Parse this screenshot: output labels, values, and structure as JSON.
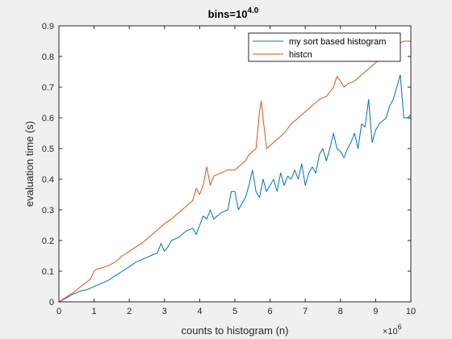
{
  "chart_data": {
    "type": "line",
    "title": "bins=10",
    "title_exponent": "4.0",
    "xlabel": "counts to histogram (n)",
    "ylabel": "evaluation time (s)",
    "x_exponent_label": "×10",
    "x_exponent": "6",
    "xlim": [
      0,
      10000000
    ],
    "ylim": [
      0,
      0.9
    ],
    "x_ticks": [
      0,
      1000000,
      2000000,
      3000000,
      4000000,
      5000000,
      6000000,
      7000000,
      8000000,
      9000000,
      10000000
    ],
    "x_tick_labels": [
      "0",
      "1",
      "2",
      "3",
      "4",
      "5",
      "6",
      "7",
      "8",
      "9",
      "10"
    ],
    "y_ticks": [
      0,
      0.1,
      0.2,
      0.3,
      0.4,
      0.5,
      0.6,
      0.7,
      0.8,
      0.9
    ],
    "y_tick_labels": [
      "0",
      "0.1",
      "0.2",
      "0.3",
      "0.4",
      "0.5",
      "0.6",
      "0.7",
      "0.8",
      "0.9"
    ],
    "grid": false,
    "legend_position": "top-right",
    "series": [
      {
        "name": "my sort based histogram",
        "color": "#0072bd",
        "x": [
          0,
          200000,
          400000,
          600000,
          800000,
          1000000,
          1200000,
          1400000,
          1600000,
          1800000,
          2000000,
          2200000,
          2400000,
          2600000,
          2800000,
          2900000,
          3000000,
          3100000,
          3200000,
          3400000,
          3600000,
          3800000,
          3900000,
          4000000,
          4100000,
          4200000,
          4300000,
          4400000,
          4600000,
          4800000,
          4900000,
          5000000,
          5100000,
          5200000,
          5300000,
          5400000,
          5500000,
          5600000,
          5700000,
          5800000,
          5900000,
          6000000,
          6100000,
          6200000,
          6300000,
          6400000,
          6500000,
          6600000,
          6700000,
          6800000,
          6900000,
          7000000,
          7100000,
          7200000,
          7300000,
          7400000,
          7500000,
          7600000,
          7700000,
          7800000,
          7900000,
          8000000,
          8100000,
          8200000,
          8300000,
          8400000,
          8500000,
          8600000,
          8700000,
          8800000,
          8900000,
          9000000,
          9100000,
          9200000,
          9300000,
          9400000,
          9500000,
          9600000,
          9700000,
          9800000,
          9900000,
          10000000
        ],
        "y": [
          0,
          0.012,
          0.025,
          0.035,
          0.04,
          0.05,
          0.06,
          0.07,
          0.085,
          0.1,
          0.115,
          0.13,
          0.14,
          0.15,
          0.16,
          0.19,
          0.165,
          0.18,
          0.2,
          0.21,
          0.23,
          0.24,
          0.22,
          0.25,
          0.28,
          0.27,
          0.3,
          0.27,
          0.29,
          0.3,
          0.36,
          0.36,
          0.3,
          0.32,
          0.34,
          0.38,
          0.43,
          0.36,
          0.34,
          0.4,
          0.36,
          0.38,
          0.4,
          0.36,
          0.42,
          0.38,
          0.41,
          0.4,
          0.43,
          0.4,
          0.45,
          0.38,
          0.42,
          0.44,
          0.42,
          0.48,
          0.5,
          0.46,
          0.5,
          0.55,
          0.5,
          0.49,
          0.47,
          0.5,
          0.52,
          0.55,
          0.5,
          0.58,
          0.57,
          0.66,
          0.52,
          0.56,
          0.58,
          0.59,
          0.6,
          0.64,
          0.66,
          0.7,
          0.74,
          0.6,
          0.6,
          0.61
        ]
      },
      {
        "name": "histcn",
        "color": "#d95319",
        "x": [
          0,
          200000,
          400000,
          600000,
          800000,
          900000,
          1000000,
          1100000,
          1200000,
          1400000,
          1600000,
          1800000,
          2000000,
          2200000,
          2400000,
          2600000,
          2800000,
          3000000,
          3200000,
          3400000,
          3600000,
          3800000,
          3900000,
          4000000,
          4100000,
          4200000,
          4300000,
          4400000,
          4600000,
          4800000,
          5000000,
          5200000,
          5300000,
          5400000,
          5500000,
          5600000,
          5700000,
          5750000,
          5800000,
          5900000,
          6000000,
          6100000,
          6200000,
          6400000,
          6600000,
          6800000,
          7000000,
          7200000,
          7400000,
          7600000,
          7800000,
          7900000,
          8000000,
          8100000,
          8200000,
          8400000,
          8600000,
          8800000,
          9000000,
          9200000,
          9400000,
          9600000,
          9800000,
          10000000
        ],
        "y": [
          0,
          0.015,
          0.03,
          0.048,
          0.065,
          0.075,
          0.1,
          0.108,
          0.11,
          0.118,
          0.13,
          0.15,
          0.165,
          0.18,
          0.195,
          0.215,
          0.235,
          0.255,
          0.27,
          0.29,
          0.31,
          0.33,
          0.37,
          0.35,
          0.38,
          0.44,
          0.38,
          0.41,
          0.42,
          0.43,
          0.43,
          0.45,
          0.46,
          0.48,
          0.49,
          0.5,
          0.62,
          0.655,
          0.6,
          0.5,
          0.51,
          0.52,
          0.53,
          0.55,
          0.58,
          0.6,
          0.62,
          0.64,
          0.66,
          0.67,
          0.7,
          0.735,
          0.72,
          0.7,
          0.71,
          0.72,
          0.74,
          0.76,
          0.78,
          0.8,
          0.82,
          0.84,
          0.85,
          0.85
        ]
      }
    ]
  }
}
